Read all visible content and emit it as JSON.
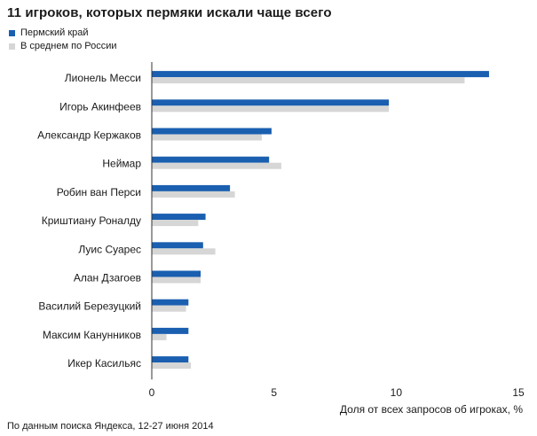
{
  "title": "11 игроков, которых пермяки искали чаще всего",
  "source": "По данным поиска Яндекса, 12-27 июня 2014",
  "colors": {
    "series1": "#1a5fb0",
    "series2": "#d6d6d6",
    "axis": "#333333"
  },
  "chart_data": {
    "type": "bar",
    "orientation": "horizontal",
    "title": "11 игроков, которых пермяки искали чаще всего",
    "xlabel": "Доля от всех запросов об игроках, %",
    "ylabel": "",
    "xlim": [
      0,
      15
    ],
    "xticks": [
      "0",
      "5",
      "10",
      "15"
    ],
    "grid": false,
    "legend_position": "top-left",
    "categories": [
      "Лионель Месси",
      "Игорь Акинфеев",
      "Александр Кержаков",
      "Неймар",
      "Робин ван Перси",
      "Криштиану Роналду",
      "Луис Суарес",
      "Алан Дзагоев",
      "Василий Березуцкий",
      "Максим Канунников",
      "Икер Касильяс"
    ],
    "series": [
      {
        "name": "Пермский край",
        "values": [
          13.8,
          9.7,
          4.9,
          4.8,
          3.2,
          2.2,
          2.1,
          2.0,
          1.5,
          1.5,
          1.5
        ]
      },
      {
        "name": "В среднем по России",
        "values": [
          12.8,
          9.7,
          4.5,
          5.3,
          3.4,
          1.9,
          2.6,
          2.0,
          1.4,
          0.6,
          1.6
        ]
      }
    ]
  }
}
